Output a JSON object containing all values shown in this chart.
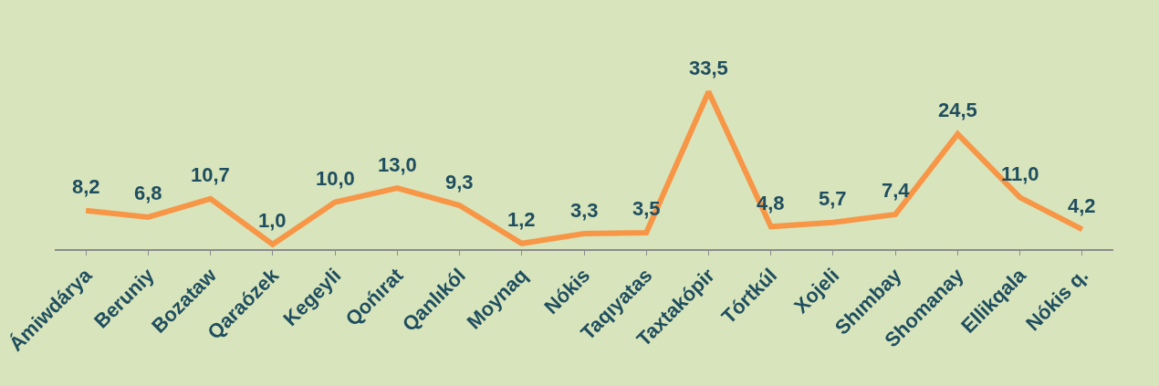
{
  "chart_data": {
    "type": "line",
    "categories": [
      "Ámiwdárya",
      "Beruniy",
      "Bozataw",
      "Qaraózek",
      "Kegeyli",
      "Qońırat",
      "Qanlıkól",
      "Moynaq",
      "Nókis",
      "Taqıyatas",
      "Taxtakópir",
      "Tórtkúl",
      "Xojeli",
      "Shımbay",
      "Shomanay",
      "Ellikqala",
      "Nókis q."
    ],
    "series": [
      {
        "color": "#f79646",
        "values": [
          8.2,
          6.8,
          10.7,
          1.0,
          10.0,
          13.0,
          9.3,
          1.2,
          3.3,
          3.5,
          33.5,
          4.8,
          5.7,
          7.4,
          24.5,
          11.0,
          4.2
        ],
        "value_labels": [
          "8,2",
          "6,8",
          "10,7",
          "1,0",
          "10,0",
          "13,0",
          "9,3",
          "1,2",
          "3,3",
          "3,5",
          "33,5",
          "4,8",
          "5,7",
          "7,4",
          "24,5",
          "11,0",
          "4,2"
        ]
      }
    ],
    "grid": false,
    "legend": false,
    "marker": "none",
    "line_style": "solid",
    "tick_labels": "x"
  }
}
